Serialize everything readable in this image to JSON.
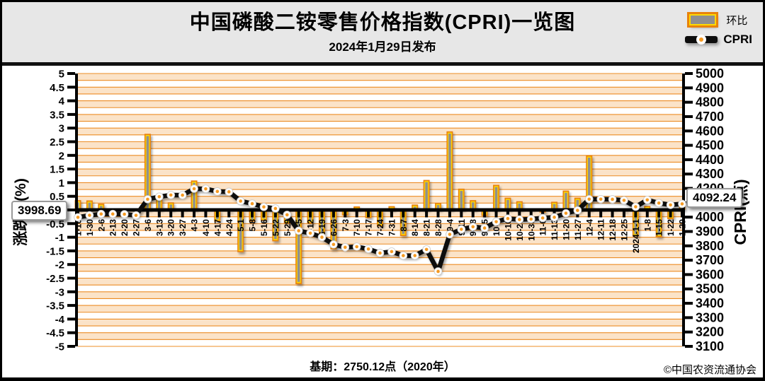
{
  "header": {
    "title": "中国磷酸二铵零售价格指数(CPRI)一览图",
    "subtitle": "2024年1月29日发布",
    "legend": [
      {
        "label": "环比",
        "swatch": "bar-swatch-icon"
      },
      {
        "label": "CPRI",
        "swatch": "line-swatch-icon"
      }
    ]
  },
  "footer": {
    "base_period": "基期：2750.12点（2020年）",
    "copyright": "©中国农资流通协会"
  },
  "colors": {
    "header_bg": "#E7E7E7",
    "grid_orange": "#EC8C24",
    "band_fill": "#FBE3C8",
    "bar_border": "#E8820C",
    "bar_highlight": "#FFD900",
    "bar_fill": "#8F8F8F",
    "line_black": "#0D0D0D",
    "marker_center": "#F59A23",
    "axis_black": "#000000"
  },
  "chart_data": {
    "type": "combo",
    "title": "中国磷酸二铵零售价格指数(CPRI)一览图",
    "subtitle": "2024年1月29日发布",
    "legend_position": "top-right",
    "grid": "horizontal gridlines every 0.25% with alternating orange bands",
    "categories": [
      "1-16",
      "1-30",
      "2-6",
      "2-13",
      "2-20",
      "2-27",
      "3-6",
      "3-13",
      "3-20",
      "3-27",
      "4-3",
      "4-10",
      "4-17",
      "4-24",
      "5-1",
      "5-8",
      "5-16",
      "5-22",
      "5-29",
      "6-5",
      "6-12",
      "6-19",
      "6-26",
      "7-3",
      "7-10",
      "7-17",
      "7-24",
      "7-31",
      "8-7",
      "8-14",
      "8-21",
      "8-28",
      "9-4",
      "9-11",
      "9-18",
      "9-25",
      "10-9",
      "10-16",
      "10-23",
      "10-30",
      "11-6",
      "11-13",
      "11-20",
      "11-27",
      "12-4",
      "12-11",
      "12-18",
      "12-25",
      "2024-1-1",
      "1-8",
      "1-15",
      "1-22",
      "1-29"
    ],
    "series": [
      {
        "name": "环比",
        "type": "bar",
        "axis": "left",
        "unit": "%",
        "values": [
          0.36,
          0.35,
          0.23,
          0.0,
          -0.03,
          -0.05,
          2.79,
          0.43,
          0.28,
          -0.02,
          1.08,
          -0.02,
          -0.43,
          -0.06,
          -1.55,
          -0.43,
          -0.4,
          -1.15,
          -0.5,
          -2.72,
          -0.5,
          -1.0,
          -1.45,
          -0.2,
          0.13,
          -0.3,
          -0.6,
          0.14,
          -0.96,
          0.2,
          1.1,
          0.26,
          2.88,
          0.78,
          0.36,
          -0.22,
          0.92,
          0.45,
          0.32,
          0.05,
          -0.1,
          0.3,
          0.71,
          0.45,
          2.0,
          0.02,
          -0.02,
          -0.05,
          -0.97,
          0.15,
          -1.0,
          -0.34,
          0.25
        ]
      },
      {
        "name": "CPRI",
        "type": "line",
        "axis": "right",
        "unit": "点",
        "values": [
          3998.69,
          4012.8,
          4021.9,
          4021.9,
          4020.5,
          4012.4,
          4124.4,
          4142.1,
          4153.7,
          4152.9,
          4197.7,
          4196.9,
          4178.8,
          4176.3,
          4111.6,
          4093.9,
          4071.0,
          4060.0,
          4016.0,
          3905.0,
          3888.0,
          3860.0,
          3810.0,
          3790.0,
          3794.0,
          3778.0,
          3750.0,
          3760.0,
          3732.0,
          3732.0,
          3775.0,
          3622.0,
          3880.0,
          3915.0,
          3933.0,
          3924.0,
          3968.0,
          3990.0,
          3983.0,
          3986.0,
          3994.0,
          3999.0,
          4027.0,
          4047.0,
          4125.0,
          4125.0,
          4124.0,
          4117.0,
          4072.0,
          4120.0,
          4098.0,
          4085.0,
          4092.24
        ]
      }
    ],
    "left_axis": {
      "title": "涨跌幅(%)",
      "min": -5,
      "max": 5,
      "tick_step": 0.5,
      "ticks": [
        "5",
        "4.5",
        "4",
        "3.5",
        "3",
        "2.5",
        "2",
        "1.5",
        "1",
        "0.5",
        "0",
        "-0.5",
        "-1",
        "-1.5",
        "-2",
        "-2.5",
        "-3",
        "-3.5",
        "-4",
        "-4.5",
        "-5"
      ]
    },
    "right_axis": {
      "title": "CPRI(点)",
      "min": 3100,
      "max": 5000,
      "tick_step": 100,
      "ticks": [
        "5000",
        "4900",
        "4800",
        "4700",
        "4600",
        "4500",
        "4400",
        "4300",
        "4200",
        "4100",
        "4000",
        "3900",
        "3800",
        "3700",
        "3600",
        "3500",
        "3400",
        "3300",
        "3200",
        "3100"
      ]
    },
    "annotations": {
      "first_point_label": "3998.69",
      "last_point_label": "4092.24"
    }
  }
}
